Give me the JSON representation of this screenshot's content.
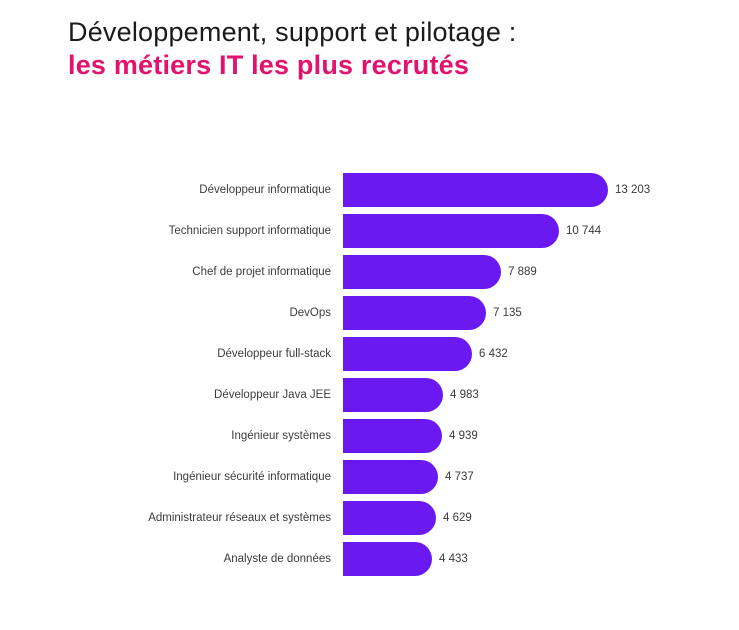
{
  "title": {
    "line1": "Développement, support et pilotage :",
    "line2": "les métiers IT les plus recrutés"
  },
  "colors": {
    "bar": "#6a1af1",
    "accent": "#e2136e",
    "title_text": "#1b1b1b",
    "label_text": "#3c3c3c"
  },
  "chart_data": {
    "type": "bar",
    "orientation": "horizontal",
    "title": "Développement, support et pilotage : les métiers IT les plus recrutés",
    "xlabel": "",
    "ylabel": "",
    "xlim": [
      0,
      13203
    ],
    "grid": false,
    "legend": false,
    "bar_color": "#6a1af1",
    "categories": [
      "Développeur informatique",
      "Technicien support informatique",
      "Chef de projet informatique",
      "DevOps",
      "Développeur full-stack",
      "Développeur Java JEE",
      "Ingénieur systèmes",
      "Ingénieur sécurité informatique",
      "Administrateur réseaux et systèmes",
      "Analyste de données"
    ],
    "values": [
      13203,
      10744,
      7889,
      7135,
      6432,
      4983,
      4939,
      4737,
      4629,
      4433
    ],
    "value_labels": [
      "13 203",
      "10 744",
      "7 889",
      "7 135",
      "6 432",
      "4 983",
      "4 939",
      "4 737",
      "4 629",
      "4 433"
    ]
  }
}
